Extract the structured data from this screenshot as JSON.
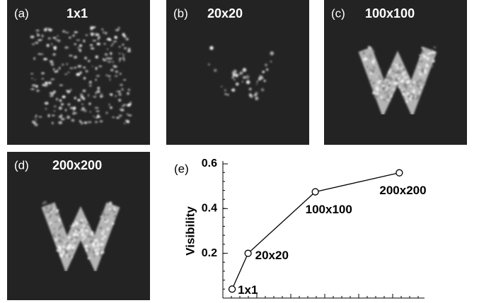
{
  "panels": [
    {
      "tag": "(a)",
      "title": "1x1"
    },
    {
      "tag": "(b)",
      "title": "20x20"
    },
    {
      "tag": "(c)",
      "title": "100x100"
    },
    {
      "tag": "(d)",
      "title": "200x200"
    }
  ],
  "chart_data": {
    "type": "line",
    "tag": "(e)",
    "y_label": "Visibility",
    "x": [
      1,
      20,
      100,
      200
    ],
    "values": [
      0.04,
      0.2,
      0.475,
      0.56
    ],
    "point_labels": [
      "1x1",
      "20x20",
      "100x100",
      "200x200"
    ],
    "xlim": [
      -10,
      230
    ],
    "ylim": [
      0,
      0.6
    ],
    "yticks": [
      0.2,
      0.4,
      0.6
    ],
    "color": "#000000"
  }
}
